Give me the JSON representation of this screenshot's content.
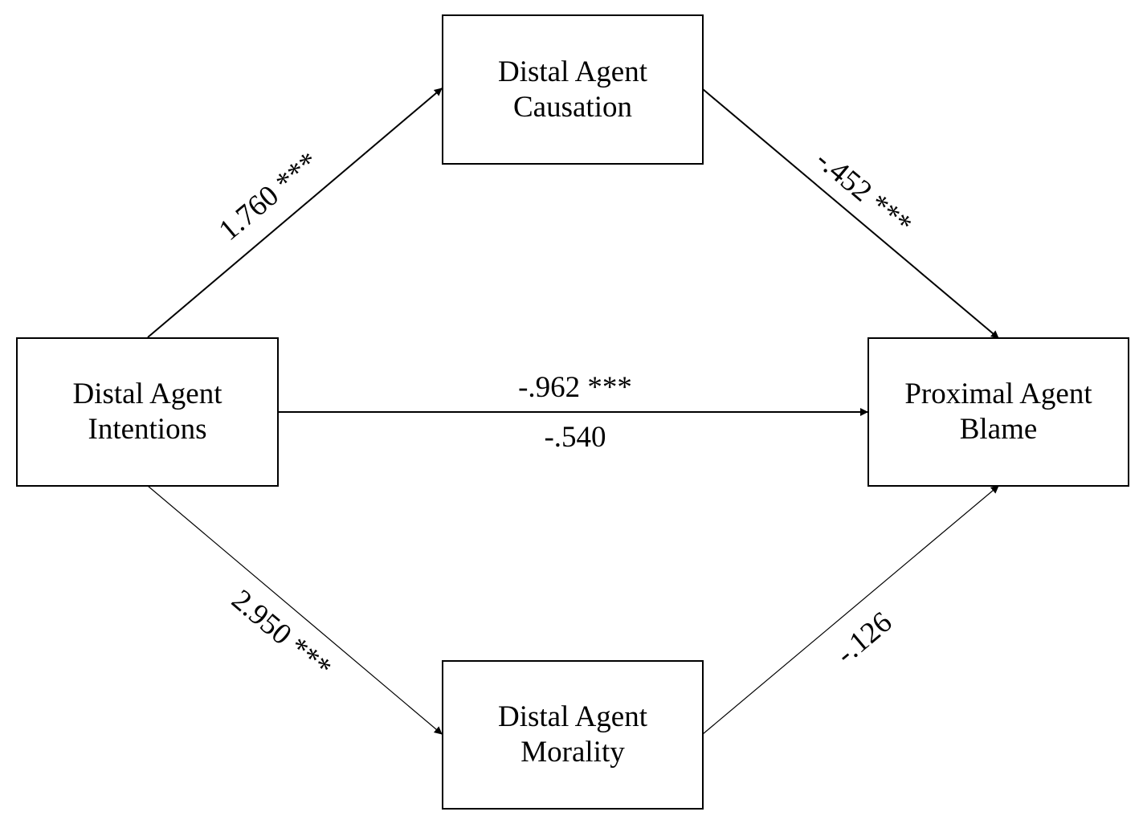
{
  "nodes": {
    "intentions": {
      "line1": "Distal Agent",
      "line2": "Intentions"
    },
    "causation": {
      "line1": "Distal Agent",
      "line2": "Causation"
    },
    "morality": {
      "line1": "Distal Agent",
      "line2": "Morality"
    },
    "blame": {
      "line1": "Proximal Agent",
      "line2": "Blame"
    }
  },
  "edges": {
    "intentions_to_causation": "1.760 ***",
    "causation_to_blame": "-.452 ***",
    "intentions_to_morality": "2.950 ***",
    "morality_to_blame": "-.126",
    "total_effect": "-.962 ***",
    "direct_effect": "-.540"
  }
}
